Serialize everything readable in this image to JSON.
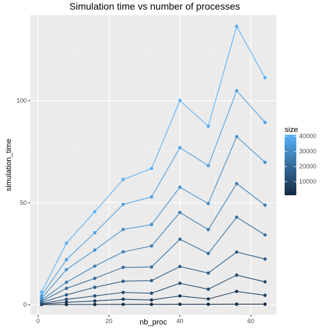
{
  "chart_data": {
    "type": "line",
    "title": "Simulation time vs number of processes",
    "xlabel": "nb_proc",
    "ylabel": "simulation_time",
    "xlim": [
      -2.2,
      67.2
    ],
    "ylim": [
      -5,
      142
    ],
    "x_ticks": [
      0,
      20,
      40,
      60
    ],
    "y_ticks": [
      0,
      50,
      100
    ],
    "grid": true,
    "legend": {
      "title": "size",
      "position": "right",
      "min": 1000,
      "max": 41000,
      "ticks": [
        10000,
        20000,
        30000,
        40000
      ],
      "color_low": "#132B43",
      "color_high": "#56B1F7"
    },
    "x": [
      1,
      8,
      16,
      24,
      32,
      40,
      48,
      56,
      64
    ],
    "series": [
      {
        "size": 1000,
        "values": [
          0.05,
          0.1,
          0.1,
          0.15,
          0.15,
          0.2,
          0.2,
          0.25,
          0.25
        ]
      },
      {
        "size": 6000,
        "values": [
          0.3,
          1.2,
          1.8,
          2.7,
          2.3,
          4.3,
          2.8,
          6.5,
          4.6
        ]
      },
      {
        "size": 11000,
        "values": [
          0.6,
          2.6,
          4.3,
          6.0,
          5.6,
          10.5,
          7.6,
          14.5,
          11.2
        ]
      },
      {
        "size": 16000,
        "values": [
          1.2,
          4.8,
          8.5,
          11.5,
          11.8,
          18.7,
          15.5,
          25.8,
          22.4
        ]
      },
      {
        "size": 21000,
        "values": [
          1.7,
          8.0,
          12.9,
          18.3,
          18.5,
          32.1,
          25.1,
          42.9,
          34.2
        ]
      },
      {
        "size": 26000,
        "values": [
          2.3,
          11.0,
          18.9,
          25.9,
          28.8,
          45.2,
          36.8,
          59.4,
          48.8
        ]
      },
      {
        "size": 31000,
        "values": [
          3.2,
          17.2,
          26.8,
          36.9,
          39.3,
          57.6,
          49.6,
          82.4,
          69.8
        ]
      },
      {
        "size": 36000,
        "values": [
          4.5,
          22.1,
          35.3,
          49.2,
          52.8,
          77.0,
          68.2,
          104.9,
          89.4
        ]
      },
      {
        "size": 41000,
        "values": [
          6.2,
          30.2,
          45.6,
          61.4,
          66.8,
          100.1,
          87.5,
          136.5,
          111.3
        ]
      }
    ]
  }
}
